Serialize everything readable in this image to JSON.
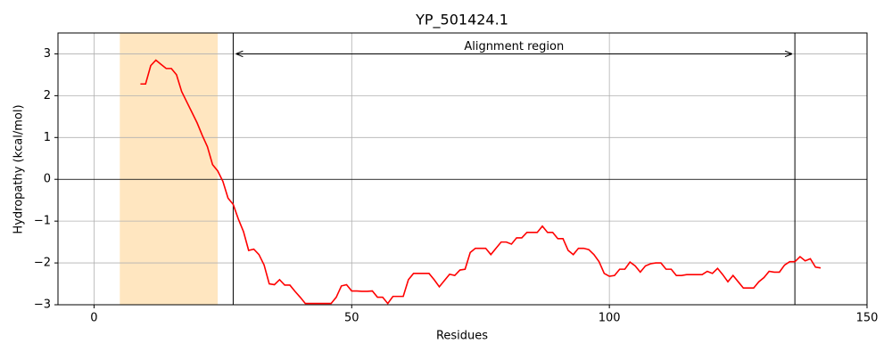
{
  "chart_data": {
    "type": "line",
    "title": "YP_501424.1",
    "xlabel": "Residues",
    "ylabel": "Hydropathy (kcal/mol)",
    "x": [
      9,
      10,
      11,
      12,
      13,
      14,
      15,
      16,
      17,
      18,
      19,
      20,
      21,
      22,
      23,
      24,
      25,
      26,
      27,
      28,
      29,
      30,
      31,
      32,
      33,
      34,
      35,
      36,
      37,
      38,
      39,
      40,
      41,
      42,
      43,
      44,
      45,
      46,
      47,
      48,
      49,
      50,
      51,
      52,
      53,
      54,
      55,
      56,
      57,
      58,
      59,
      60,
      61,
      62,
      63,
      64,
      65,
      66,
      67,
      68,
      69,
      70,
      71,
      72,
      73,
      74,
      75,
      76,
      77,
      78,
      79,
      80,
      81,
      82,
      83,
      84,
      85,
      86,
      87,
      88,
      89,
      90,
      91,
      92,
      93,
      94,
      95,
      96,
      97,
      98,
      99,
      100,
      101,
      102,
      103,
      104,
      105,
      106,
      107,
      108,
      109,
      110,
      111,
      112,
      113,
      114,
      115,
      116,
      117,
      118,
      119,
      120,
      121,
      122,
      123,
      124,
      125,
      126,
      127,
      128,
      129,
      130,
      131,
      132,
      133,
      134,
      135,
      136,
      137,
      138,
      139,
      140,
      141
    ],
    "series": [
      {
        "color": "#ff0000",
        "values": [
          2.28,
          2.28,
          2.72,
          2.85,
          2.75,
          2.65,
          2.65,
          2.5,
          2.1,
          1.85,
          1.6,
          1.35,
          1.05,
          0.78,
          0.35,
          0.2,
          -0.05,
          -0.45,
          -0.6,
          -0.95,
          -1.25,
          -1.7,
          -1.67,
          -1.8,
          -2.05,
          -2.5,
          -2.52,
          -2.4,
          -2.53,
          -2.53,
          -2.68,
          -2.82,
          -2.97,
          -2.97,
          -2.97,
          -2.97,
          -2.97,
          -2.97,
          -2.82,
          -2.55,
          -2.52,
          -2.67,
          -2.67,
          -2.68,
          -2.68,
          -2.67,
          -2.82,
          -2.82,
          -2.97,
          -2.8,
          -2.8,
          -2.8,
          -2.4,
          -2.25,
          -2.25,
          -2.25,
          -2.25,
          -2.4,
          -2.57,
          -2.42,
          -2.27,
          -2.3,
          -2.17,
          -2.15,
          -1.75,
          -1.65,
          -1.65,
          -1.65,
          -1.8,
          -1.65,
          -1.5,
          -1.5,
          -1.55,
          -1.4,
          -1.4,
          -1.27,
          -1.27,
          -1.27,
          -1.12,
          -1.27,
          -1.27,
          -1.42,
          -1.42,
          -1.7,
          -1.8,
          -1.65,
          -1.65,
          -1.68,
          -1.8,
          -1.97,
          -2.25,
          -2.32,
          -2.3,
          -2.15,
          -2.15,
          -1.98,
          -2.07,
          -2.22,
          -2.07,
          -2.02,
          -2.0,
          -2.0,
          -2.15,
          -2.15,
          -2.3,
          -2.3,
          -2.28,
          -2.28,
          -2.28,
          -2.28,
          -2.2,
          -2.25,
          -2.13,
          -2.28,
          -2.45,
          -2.3,
          -2.45,
          -2.6,
          -2.6,
          -2.6,
          -2.45,
          -2.35,
          -2.2,
          -2.22,
          -2.22,
          -2.05,
          -1.97,
          -1.97,
          -1.85,
          -1.95,
          -1.9,
          -2.1,
          -2.12
        ]
      }
    ],
    "xlim": [
      -7,
      150
    ],
    "ylim": [
      -3,
      3.5
    ],
    "xticks": [
      0,
      50,
      100,
      150
    ],
    "yticks": [
      {
        "value": -3,
        "label": "−3"
      },
      {
        "value": -2,
        "label": "−2"
      },
      {
        "value": -1,
        "label": "−1"
      },
      0,
      1,
      2,
      3
    ],
    "grid": true,
    "hline": 0,
    "highlight": [
      5,
      24
    ],
    "highlight_color": "#ffe6c0",
    "vlines": [
      27,
      136
    ],
    "annotation": {
      "text": "Alignment region",
      "y": 3
    }
  }
}
